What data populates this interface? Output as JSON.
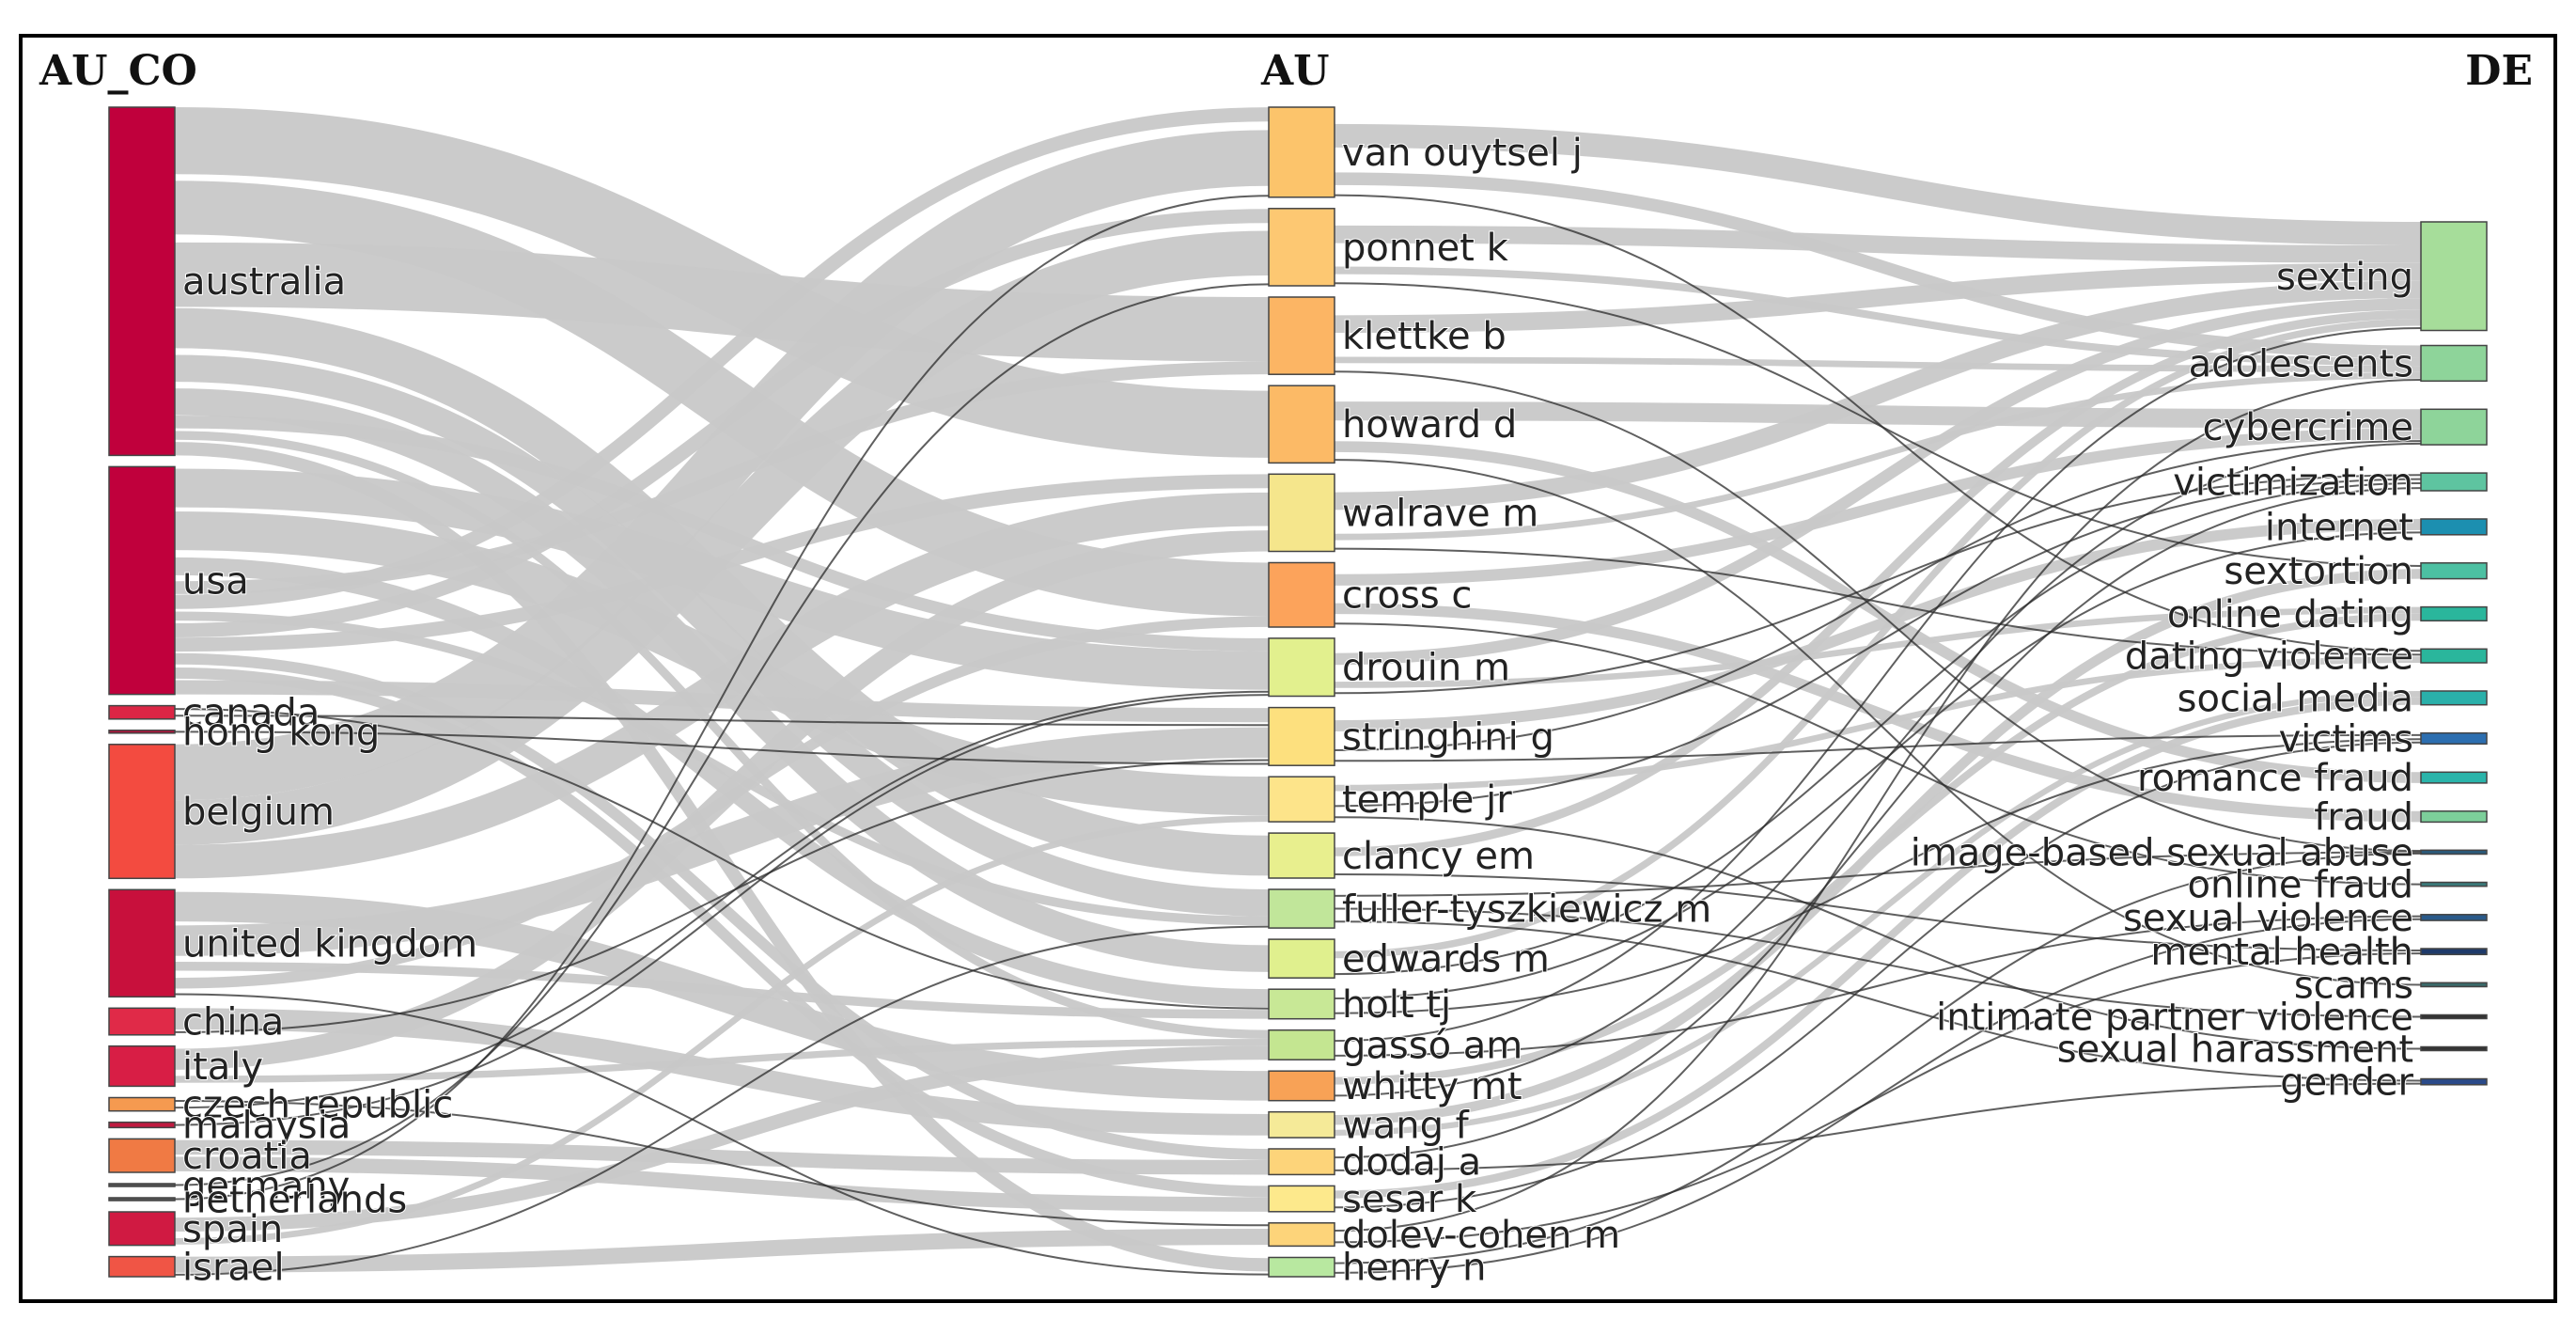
{
  "headers": {
    "left": "AU_CO",
    "middle": "AU",
    "right": "DE"
  },
  "columns": {
    "au_co": [
      {
        "label": "australia",
        "color": "#c0003c",
        "size": 26
      },
      {
        "label": "usa",
        "color": "#c0003c",
        "size": 17
      },
      {
        "label": "canada",
        "color": "#dc2545",
        "size": 1
      },
      {
        "label": "hong kong",
        "color": "#b0123a",
        "size": 0.2
      },
      {
        "label": "belgium",
        "color": "#f34b40",
        "size": 10
      },
      {
        "label": "united kingdom",
        "color": "#c8103c",
        "size": 8
      },
      {
        "label": "china",
        "color": "#e02a48",
        "size": 2
      },
      {
        "label": "italy",
        "color": "#d81e45",
        "size": 3
      },
      {
        "label": "czech republic",
        "color": "#f59a50",
        "size": 1
      },
      {
        "label": "malaysia",
        "color": "#c01a40",
        "size": 0.4
      },
      {
        "label": "croatia",
        "color": "#f07a44",
        "size": 2.5
      },
      {
        "label": "germany",
        "color": "#555555",
        "size": 0.2
      },
      {
        "label": "netherlands",
        "color": "#555555",
        "size": 0.2
      },
      {
        "label": "spain",
        "color": "#d01a42",
        "size": 2.5
      },
      {
        "label": "israel",
        "color": "#f05545",
        "size": 1.5
      }
    ],
    "au": [
      {
        "label": "van ouytsel j",
        "color": "#fcc46b",
        "size": 7
      },
      {
        "label": "ponnet k",
        "color": "#fdc872",
        "size": 6
      },
      {
        "label": "klettke b",
        "color": "#fcb564",
        "size": 6
      },
      {
        "label": "howard d",
        "color": "#fcba66",
        "size": 6
      },
      {
        "label": "walrave m",
        "color": "#f5e68c",
        "size": 6
      },
      {
        "label": "cross c",
        "color": "#fca35b",
        "size": 5
      },
      {
        "label": "drouin m",
        "color": "#e2f08e",
        "size": 4.5
      },
      {
        "label": "stringhini g",
        "color": "#fde07e",
        "size": 4.5
      },
      {
        "label": "temple jr",
        "color": "#fde48a",
        "size": 3.5
      },
      {
        "label": "clancy em",
        "color": "#e8ef8e",
        "size": 3.5
      },
      {
        "label": "fuller-tyszkiewicz m",
        "color": "#c1e69a",
        "size": 3
      },
      {
        "label": "edwards m",
        "color": "#e0f08e",
        "size": 3
      },
      {
        "label": "holt tj",
        "color": "#c8e896",
        "size": 2.3
      },
      {
        "label": "gassó am",
        "color": "#c4e691",
        "size": 2.3
      },
      {
        "label": "whitty mt",
        "color": "#f8a256",
        "size": 2.3
      },
      {
        "label": "wang f",
        "color": "#f5ea98",
        "size": 2
      },
      {
        "label": "dodaj a",
        "color": "#fdd47a",
        "size": 2
      },
      {
        "label": "sesar k",
        "color": "#fde98c",
        "size": 2
      },
      {
        "label": "dolev-cohen m",
        "color": "#fdd47a",
        "size": 1.8
      },
      {
        "label": "henry n",
        "color": "#b8e8a0",
        "size": 1.5
      }
    ],
    "de": [
      {
        "label": "sexting",
        "color": "#a6dd9a",
        "size": 11
      },
      {
        "label": "adolescents",
        "color": "#8ed49a",
        "size": 3.6
      },
      {
        "label": "cybercrime",
        "color": "#8ed49a",
        "size": 3.6
      },
      {
        "label": "victimization",
        "color": "#5ec4a0",
        "size": 1.8
      },
      {
        "label": "internet",
        "color": "#1c8fb0",
        "size": 1.6
      },
      {
        "label": "sextortion",
        "color": "#4cc0a2",
        "size": 1.6
      },
      {
        "label": "online dating",
        "color": "#2ab69c",
        "size": 1.4
      },
      {
        "label": "dating violence",
        "color": "#2ab69c",
        "size": 1.4
      },
      {
        "label": "social media",
        "color": "#2ab0aa",
        "size": 1.4
      },
      {
        "label": "victims",
        "color": "#2c6eb0",
        "size": 1.1
      },
      {
        "label": "romance fraud",
        "color": "#2ab4aa",
        "size": 1.1
      },
      {
        "label": "fraud",
        "color": "#7ccf9a",
        "size": 1.1
      },
      {
        "label": "image-based sexual abuse",
        "color": "#2a5a7a",
        "size": 0.4
      },
      {
        "label": "online fraud",
        "color": "#3a7a7a",
        "size": 0.4
      },
      {
        "label": "sexual violence",
        "color": "#2a5a8a",
        "size": 0.6
      },
      {
        "label": "mental health",
        "color": "#1e3a6a",
        "size": 0.6
      },
      {
        "label": "scams",
        "color": "#3a6a6a",
        "size": 0.4
      },
      {
        "label": "intimate partner violence",
        "color": "#333333",
        "size": 0.3
      },
      {
        "label": "sexual harassment",
        "color": "#333333",
        "size": 0.3
      },
      {
        "label": "gender",
        "color": "#2a4a8a",
        "size": 0.6
      }
    ]
  },
  "links_left": [
    {
      "s": 0,
      "t": 3,
      "v": 5
    },
    {
      "s": 0,
      "t": 5,
      "v": 5
    },
    {
      "s": 0,
      "t": 2,
      "v": 5
    },
    {
      "s": 0,
      "t": 9,
      "v": 3
    },
    {
      "s": 0,
      "t": 10,
      "v": 3
    },
    {
      "s": 0,
      "t": 11,
      "v": 2
    },
    {
      "s": 0,
      "t": 6,
      "v": 1
    },
    {
      "s": 0,
      "t": 13,
      "v": 1
    },
    {
      "s": 0,
      "t": 19,
      "v": 1
    },
    {
      "s": 1,
      "t": 6,
      "v": 3
    },
    {
      "s": 1,
      "t": 8,
      "v": 3
    },
    {
      "s": 1,
      "t": 12,
      "v": 2
    },
    {
      "s": 1,
      "t": 2,
      "v": 1
    },
    {
      "s": 1,
      "t": 0,
      "v": 1
    },
    {
      "s": 1,
      "t": 10,
      "v": 1
    },
    {
      "s": 1,
      "t": 1,
      "v": 1
    },
    {
      "s": 1,
      "t": 4,
      "v": 1
    },
    {
      "s": 1,
      "t": 16,
      "v": 1
    },
    {
      "s": 1,
      "t": 17,
      "v": 1
    },
    {
      "s": 1,
      "t": 7,
      "v": 1
    },
    {
      "s": 2,
      "t": 12,
      "v": 0.3
    },
    {
      "s": 2,
      "t": 7,
      "v": 0.3
    },
    {
      "s": 4,
      "t": 0,
      "v": 5
    },
    {
      "s": 4,
      "t": 1,
      "v": 4
    },
    {
      "s": 4,
      "t": 4,
      "v": 3
    },
    {
      "s": 5,
      "t": 14,
      "v": 2
    },
    {
      "s": 5,
      "t": 7,
      "v": 2
    },
    {
      "s": 5,
      "t": 12,
      "v": 1
    },
    {
      "s": 5,
      "t": 5,
      "v": 1
    },
    {
      "s": 5,
      "t": 19,
      "v": 0.3
    },
    {
      "s": 6,
      "t": 15,
      "v": 1.2
    },
    {
      "s": 6,
      "t": 7,
      "v": 0.3
    },
    {
      "s": 7,
      "t": 4,
      "v": 1.5
    },
    {
      "s": 7,
      "t": 13,
      "v": 0.8
    },
    {
      "s": 8,
      "t": 18,
      "v": 0.3
    },
    {
      "s": 8,
      "t": 6,
      "v": 0.3
    },
    {
      "s": 9,
      "t": 6,
      "v": 0.2
    },
    {
      "s": 10,
      "t": 16,
      "v": 1.3
    },
    {
      "s": 10,
      "t": 17,
      "v": 1.3
    },
    {
      "s": 11,
      "t": 1,
      "v": 0.2
    },
    {
      "s": 12,
      "t": 0,
      "v": 0.2
    },
    {
      "s": 3,
      "t": 7,
      "v": 0.2
    },
    {
      "s": 13,
      "t": 13,
      "v": 1.6
    },
    {
      "s": 13,
      "t": 8,
      "v": 0.5
    },
    {
      "s": 14,
      "t": 18,
      "v": 1.2
    },
    {
      "s": 14,
      "t": 10,
      "v": 0.3
    }
  ],
  "links_right": [
    {
      "s": 0,
      "t": 0,
      "v": 4
    },
    {
      "s": 0,
      "t": 1,
      "v": 2
    },
    {
      "s": 0,
      "t": 7,
      "v": 0.3
    },
    {
      "s": 1,
      "t": 0,
      "v": 3
    },
    {
      "s": 1,
      "t": 1,
      "v": 1.2
    },
    {
      "s": 1,
      "t": 5,
      "v": 0.3
    },
    {
      "s": 2,
      "t": 0,
      "v": 3
    },
    {
      "s": 2,
      "t": 1,
      "v": 1
    },
    {
      "s": 2,
      "t": 12,
      "v": 0.3
    },
    {
      "s": 3,
      "t": 2,
      "v": 2.5
    },
    {
      "s": 3,
      "t": 10,
      "v": 1
    },
    {
      "s": 3,
      "t": 16,
      "v": 0.3
    },
    {
      "s": 4,
      "t": 0,
      "v": 3
    },
    {
      "s": 4,
      "t": 1,
      "v": 1
    },
    {
      "s": 4,
      "t": 7,
      "v": 0.3
    },
    {
      "s": 5,
      "t": 2,
      "v": 1.5
    },
    {
      "s": 5,
      "t": 11,
      "v": 1
    },
    {
      "s": 5,
      "t": 13,
      "v": 0.3
    },
    {
      "s": 6,
      "t": 0,
      "v": 2
    },
    {
      "s": 6,
      "t": 6,
      "v": 0.5
    },
    {
      "s": 6,
      "t": 3,
      "v": 0.3
    },
    {
      "s": 7,
      "t": 4,
      "v": 1.2
    },
    {
      "s": 7,
      "t": 2,
      "v": 0.4
    },
    {
      "s": 7,
      "t": 9,
      "v": 0.3
    },
    {
      "s": 8,
      "t": 7,
      "v": 0.5
    },
    {
      "s": 8,
      "t": 3,
      "v": 0.3
    },
    {
      "s": 8,
      "t": 18,
      "v": 0.2
    },
    {
      "s": 9,
      "t": 0,
      "v": 1.5
    },
    {
      "s": 9,
      "t": 15,
      "v": 0.3
    },
    {
      "s": 10,
      "t": 12,
      "v": 0.3
    },
    {
      "s": 10,
      "t": 17,
      "v": 0.3
    },
    {
      "s": 10,
      "t": 19,
      "v": 0.3
    },
    {
      "s": 11,
      "t": 0,
      "v": 1.2
    },
    {
      "s": 11,
      "t": 3,
      "v": 0.3
    },
    {
      "s": 12,
      "t": 4,
      "v": 0.5
    },
    {
      "s": 12,
      "t": 9,
      "v": 0.3
    },
    {
      "s": 13,
      "t": 0,
      "v": 0.8
    },
    {
      "s": 13,
      "t": 14,
      "v": 0.3
    },
    {
      "s": 14,
      "t": 6,
      "v": 0.6
    },
    {
      "s": 14,
      "t": 2,
      "v": 0.3
    },
    {
      "s": 15,
      "t": 5,
      "v": 0.5
    },
    {
      "s": 15,
      "t": 8,
      "v": 0.3
    },
    {
      "s": 16,
      "t": 3,
      "v": 0.4
    },
    {
      "s": 16,
      "t": 19,
      "v": 0.2
    },
    {
      "s": 17,
      "t": 8,
      "v": 0.4
    },
    {
      "s": 17,
      "t": 9,
      "v": 0.2
    },
    {
      "s": 18,
      "t": 1,
      "v": 0.4
    },
    {
      "s": 18,
      "t": 15,
      "v": 0.2
    },
    {
      "s": 19,
      "t": 12,
      "v": 0.3
    },
    {
      "s": 19,
      "t": 14,
      "v": 0.2
    }
  ]
}
